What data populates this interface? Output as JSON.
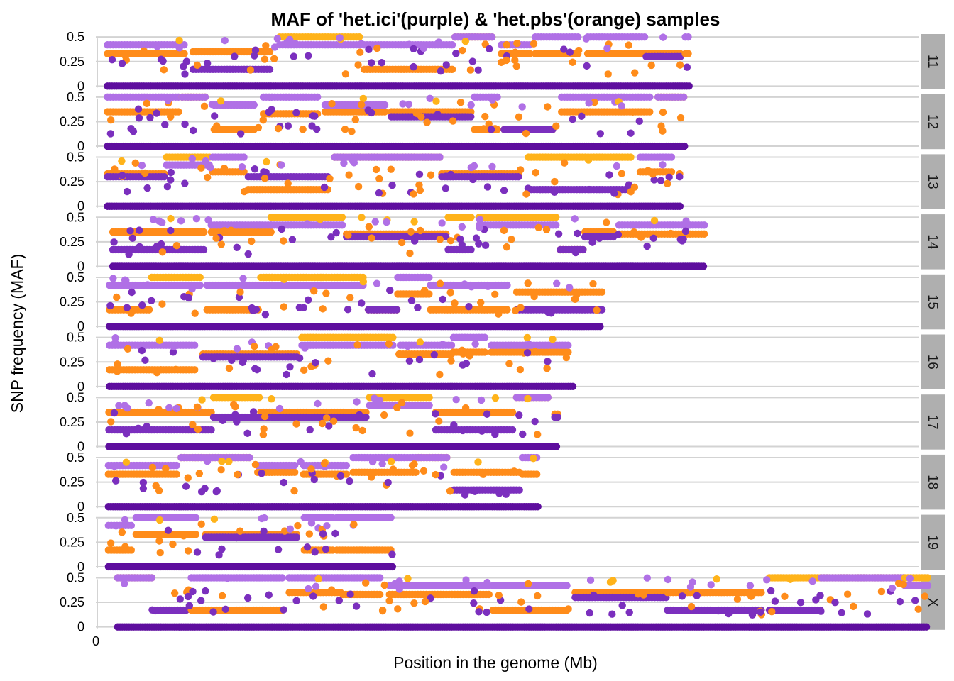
{
  "chart_data": {
    "type": "scatter",
    "title": "MAF of 'het.ici'(purple) & 'het.pbs'(orange) samples",
    "xlabel": "Position in the genome (Mb)",
    "ylabel": "SNP frequency (MAF)",
    "x_ticks": [
      {
        "value": 0,
        "label": "0"
      }
    ],
    "y_ticks": [
      {
        "value": 0,
        "label": "0"
      },
      {
        "value": 0.25,
        "label": "0.25"
      },
      {
        "value": 0.5,
        "label": "0.5"
      }
    ],
    "ylim": [
      -0.03,
      0.53
    ],
    "x_unit": "Mb",
    "x_axis_max_mb": 169,
    "grid": "horizontal only",
    "facets": "rows, strip labels on right",
    "colors": {
      "het.ici": "#7B2FBE",
      "het.ici_light": "#B070E6",
      "het.ici_zero": "#5E0E9E",
      "het.pbs": "#FF8C1A",
      "het.pbs_light": "#FFB31A",
      "grid": "#D3D3D3",
      "strip_bg": "#AFAFAF"
    },
    "panels": [
      {
        "label": "11",
        "start": 2.4,
        "end": 122.0
      },
      {
        "label": "12",
        "start": 2.4,
        "end": 121.0
      },
      {
        "label": "13",
        "start": 2.4,
        "end": 120.0
      },
      {
        "label": "14",
        "start": 3.5,
        "end": 125.0
      },
      {
        "label": "15",
        "start": 2.8,
        "end": 104.0
      },
      {
        "label": "16",
        "start": 2.8,
        "end": 98.0
      },
      {
        "label": "17",
        "start": 2.7,
        "end": 95.0
      },
      {
        "label": "18",
        "start": 2.6,
        "end": 91.0
      },
      {
        "label": "19",
        "start": 2.6,
        "end": 61.0
      },
      {
        "label": "X",
        "start": 4.5,
        "end": 171.0
      }
    ],
    "series": [
      {
        "name": "het.ici",
        "color": "#7B2FBE"
      },
      {
        "name": "het.pbs",
        "color": "#FF8C1A"
      }
    ],
    "note_on_points": "Points are a dense stream of MAF values: a solid band at 0 across each chromosome plus plateaus near 0.17, 0.3, 0.35, 0.42 and 0.5."
  }
}
